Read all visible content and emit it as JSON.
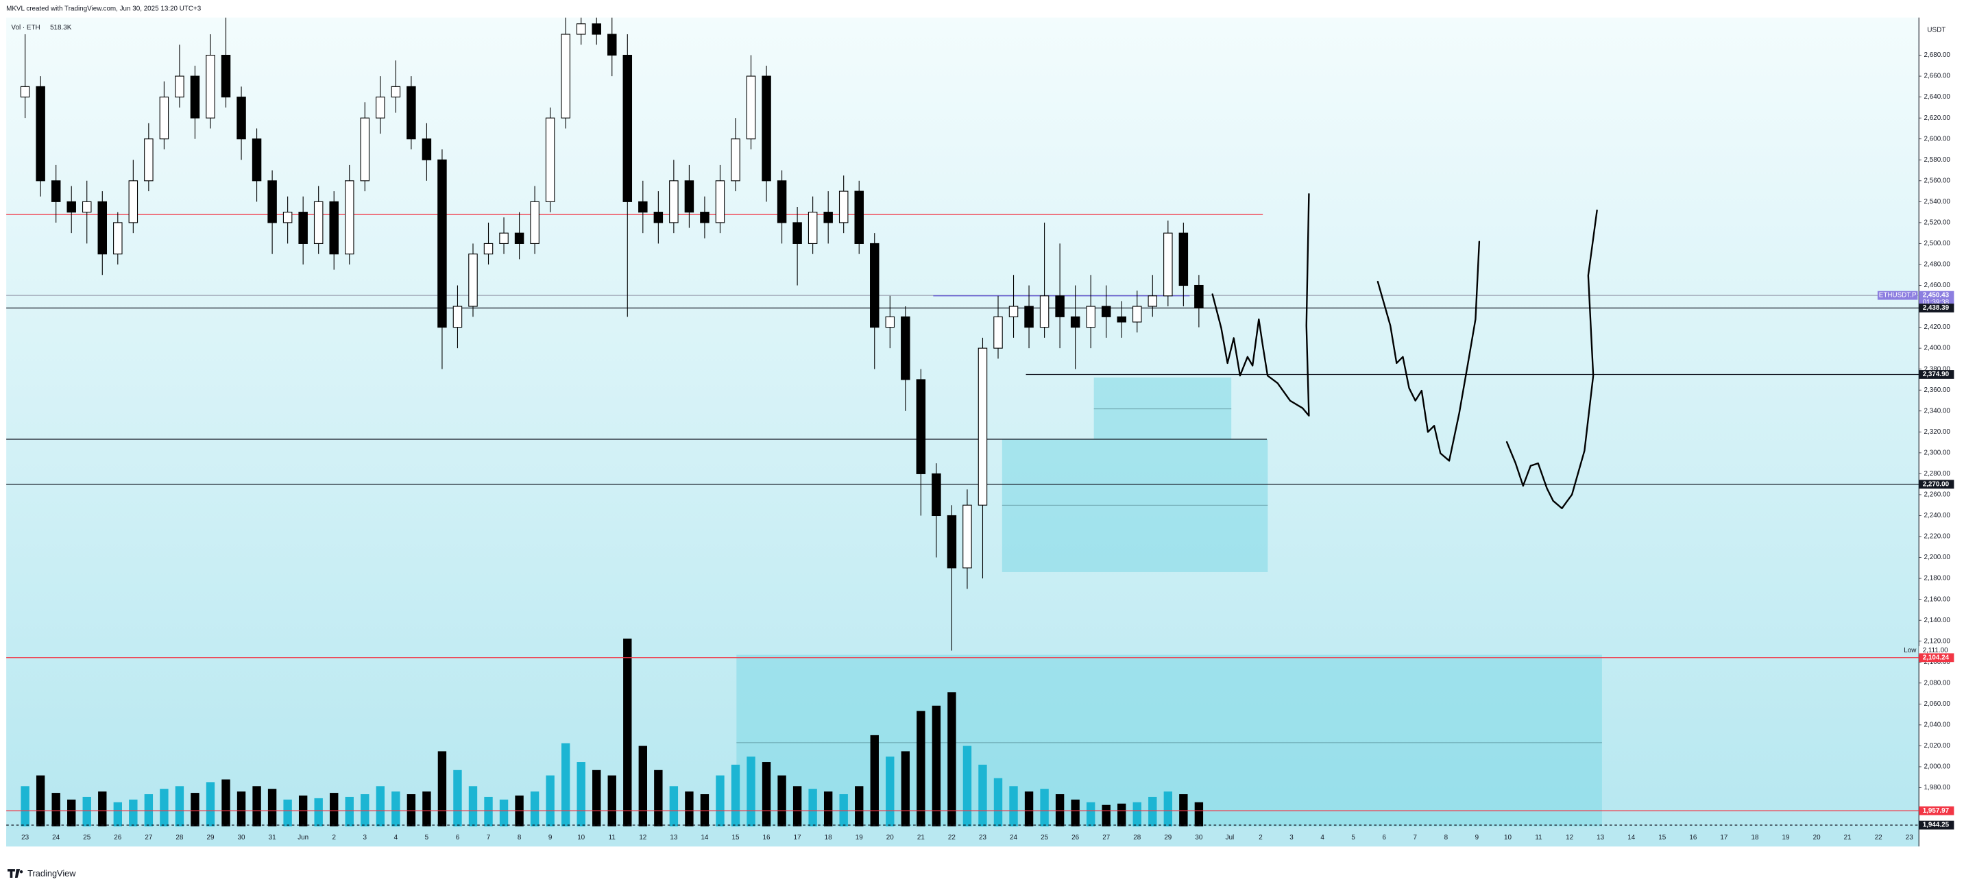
{
  "header": "MKVL created with TradingView.com, Jun 30, 2025 13:20 UTC+3",
  "footer": "TradingView",
  "chart_data": {
    "type": "candlestick",
    "currency": "USDT",
    "volume_label": "Vol · ETH",
    "volume_value": "518.3K",
    "up_color": "#ffffff",
    "down_color": "#000000",
    "volume_up_color": "#1cb5d3",
    "volume_down_color": "#000000",
    "x": [
      0,
      0.5,
      1,
      1.5,
      2,
      2.5,
      3,
      3.5,
      4,
      4.5,
      5,
      5.5,
      6,
      6.5,
      7,
      7.5,
      8,
      8.5,
      9,
      9.5,
      10,
      10.5,
      11,
      11.5,
      12,
      12.5,
      13,
      13.5,
      14,
      14.5,
      15,
      15.5,
      16,
      16.5,
      17,
      17.5,
      18,
      18.5,
      19,
      19.5,
      20,
      20.5,
      21,
      21.5,
      22,
      22.5,
      23,
      23.5,
      24,
      24.5,
      25,
      25.5,
      26,
      26.5,
      27,
      27.5,
      28,
      28.5,
      29,
      29.5,
      30,
      30.5,
      31,
      31.5,
      32,
      32.5,
      33,
      33.5,
      34,
      34.5,
      35,
      35.5,
      36,
      36.5,
      37,
      37.5,
      38
    ],
    "open": [
      2640,
      2650,
      2560,
      2540,
      2530,
      2540,
      2490,
      2520,
      2560,
      2600,
      2640,
      2660,
      2620,
      2680,
      2640,
      2600,
      2560,
      2520,
      2530,
      2500,
      2540,
      2490,
      2560,
      2620,
      2640,
      2650,
      2600,
      2580,
      2420,
      2440,
      2490,
      2500,
      2510,
      2500,
      2540,
      2620,
      2700,
      2710,
      2700,
      2680,
      2540,
      2530,
      2520,
      2560,
      2530,
      2520,
      2560,
      2600,
      2660,
      2560,
      2520,
      2500,
      2530,
      2520,
      2550,
      2500,
      2420,
      2430,
      2370,
      2280,
      2240,
      2190,
      2250,
      2400,
      2430,
      2440,
      2420,
      2450,
      2430,
      2420,
      2440,
      2430,
      2425,
      2440,
      2450,
      2510,
      2460
    ],
    "high": [
      2700,
      2660,
      2575,
      2555,
      2560,
      2550,
      2530,
      2580,
      2615,
      2655,
      2690,
      2670,
      2700,
      2716,
      2650,
      2610,
      2570,
      2545,
      2545,
      2555,
      2550,
      2575,
      2635,
      2660,
      2675,
      2660,
      2615,
      2590,
      2460,
      2500,
      2520,
      2525,
      2530,
      2555,
      2630,
      2716,
      2716,
      2716,
      2716,
      2700,
      2560,
      2550,
      2580,
      2575,
      2545,
      2575,
      2620,
      2680,
      2670,
      2570,
      2535,
      2545,
      2550,
      2565,
      2560,
      2510,
      2450,
      2440,
      2380,
      2290,
      2250,
      2265,
      2410,
      2450,
      2470,
      2460,
      2520,
      2500,
      2460,
      2470,
      2460,
      2445,
      2455,
      2470,
      2522,
      2520,
      2470
    ],
    "low": [
      2620,
      2545,
      2520,
      2510,
      2500,
      2470,
      2480,
      2510,
      2550,
      2590,
      2630,
      2600,
      2610,
      2630,
      2580,
      2540,
      2490,
      2500,
      2480,
      2490,
      2475,
      2480,
      2550,
      2605,
      2625,
      2590,
      2560,
      2380,
      2400,
      2430,
      2480,
      2490,
      2485,
      2490,
      2530,
      2610,
      2690,
      2690,
      2660,
      2430,
      2510,
      2500,
      2510,
      2515,
      2505,
      2510,
      2550,
      2590,
      2540,
      2500,
      2460,
      2490,
      2500,
      2510,
      2490,
      2380,
      2400,
      2340,
      2240,
      2200,
      2111,
      2170,
      2180,
      2390,
      2410,
      2400,
      2410,
      2400,
      2380,
      2400,
      2410,
      2410,
      2415,
      2430,
      2440,
      2440,
      2420
    ],
    "close": [
      2650,
      2560,
      2540,
      2530,
      2540,
      2490,
      2520,
      2560,
      2600,
      2640,
      2660,
      2620,
      2680,
      2640,
      2600,
      2560,
      2520,
      2530,
      2500,
      2540,
      2490,
      2560,
      2620,
      2640,
      2650,
      2600,
      2580,
      2420,
      2440,
      2490,
      2500,
      2510,
      2500,
      2540,
      2620,
      2700,
      2710,
      2700,
      2680,
      2540,
      2530,
      2520,
      2560,
      2530,
      2520,
      2560,
      2600,
      2660,
      2560,
      2520,
      2500,
      2530,
      2520,
      2550,
      2500,
      2420,
      2430,
      2370,
      2280,
      2240,
      2190,
      2250,
      2400,
      2430,
      2440,
      2420,
      2450,
      2430,
      2420,
      2440,
      2430,
      2425,
      2440,
      2450,
      2510,
      2460,
      2438.39
    ],
    "volume": [
      300,
      380,
      250,
      200,
      220,
      260,
      180,
      200,
      240,
      280,
      300,
      250,
      330,
      350,
      260,
      300,
      280,
      200,
      230,
      210,
      250,
      220,
      240,
      300,
      260,
      240,
      260,
      560,
      420,
      300,
      220,
      200,
      230,
      260,
      380,
      620,
      480,
      420,
      380,
      1400,
      600,
      420,
      300,
      260,
      240,
      380,
      460,
      520,
      480,
      380,
      300,
      280,
      260,
      240,
      300,
      680,
      520,
      560,
      860,
      900,
      1000,
      600,
      460,
      360,
      300,
      260,
      280,
      240,
      200,
      180,
      160,
      170,
      180,
      220,
      260,
      240,
      180
    ],
    "ylim": [
      1943,
      2716
    ],
    "yticks": [
      {
        "value": 1980,
        "label": "1,980.00"
      },
      {
        "value": 2000,
        "label": "2,000.00"
      },
      {
        "value": 2020,
        "label": "2,020.00"
      },
      {
        "value": 2040,
        "label": "2,040.00"
      },
      {
        "value": 2060,
        "label": "2,060.00"
      },
      {
        "value": 2080,
        "label": "2,080.00"
      },
      {
        "value": 2100,
        "label": "2,100.00"
      },
      {
        "value": 2120,
        "label": "2,120.00"
      },
      {
        "value": 2140,
        "label": "2,140.00"
      },
      {
        "value": 2160,
        "label": "2,160.00"
      },
      {
        "value": 2180,
        "label": "2,180.00"
      },
      {
        "value": 2200,
        "label": "2,200.00"
      },
      {
        "value": 2220,
        "label": "2,220.00"
      },
      {
        "value": 2240,
        "label": "2,240.00"
      },
      {
        "value": 2260,
        "label": "2,260.00"
      },
      {
        "value": 2280,
        "label": "2,280.00"
      },
      {
        "value": 2300,
        "label": "2,300.00"
      },
      {
        "value": 2320,
        "label": "2,320.00"
      },
      {
        "value": 2340,
        "label": "2,340.00"
      },
      {
        "value": 2360,
        "label": "2,360.00"
      },
      {
        "value": 2380,
        "label": "2,380.00"
      },
      {
        "value": 2400,
        "label": "2,400.00"
      },
      {
        "value": 2420,
        "label": "2,420.00"
      },
      {
        "value": 2440,
        "label": "2,440.00"
      },
      {
        "value": 2460,
        "label": "2,460.00"
      },
      {
        "value": 2480,
        "label": "2,480.00"
      },
      {
        "value": 2500,
        "label": "2,500.00"
      },
      {
        "value": 2520,
        "label": "2,520.00"
      },
      {
        "value": 2540,
        "label": "2,540.00"
      },
      {
        "value": 2560,
        "label": "2,560.00"
      },
      {
        "value": 2580,
        "label": "2,580.00"
      },
      {
        "value": 2600,
        "label": "2,600.00"
      },
      {
        "value": 2620,
        "label": "2,620.00"
      },
      {
        "value": 2640,
        "label": "2,640.00"
      },
      {
        "value": 2660,
        "label": "2,660.00"
      },
      {
        "value": 2680,
        "label": "2,680.00"
      }
    ],
    "xlim": [
      -0.61,
      61.31
    ],
    "xticks": [
      {
        "value": 0,
        "label": "23"
      },
      {
        "value": 1,
        "label": "24"
      },
      {
        "value": 2,
        "label": "25"
      },
      {
        "value": 3,
        "label": "26"
      },
      {
        "value": 4,
        "label": "27"
      },
      {
        "value": 5,
        "label": "28"
      },
      {
        "value": 6,
        "label": "29"
      },
      {
        "value": 7,
        "label": "30"
      },
      {
        "value": 8,
        "label": "31"
      },
      {
        "value": 9,
        "label": "Jun"
      },
      {
        "value": 10,
        "label": "2"
      },
      {
        "value": 11,
        "label": "3"
      },
      {
        "value": 12,
        "label": "4"
      },
      {
        "value": 13,
        "label": "5"
      },
      {
        "value": 14,
        "label": "6"
      },
      {
        "value": 15,
        "label": "7"
      },
      {
        "value": 16,
        "label": "8"
      },
      {
        "value": 17,
        "label": "9"
      },
      {
        "value": 18,
        "label": "10"
      },
      {
        "value": 19,
        "label": "11"
      },
      {
        "value": 20,
        "label": "12"
      },
      {
        "value": 21,
        "label": "13"
      },
      {
        "value": 22,
        "label": "14"
      },
      {
        "value": 23,
        "label": "15"
      },
      {
        "value": 24,
        "label": "16"
      },
      {
        "value": 25,
        "label": "17"
      },
      {
        "value": 26,
        "label": "18"
      },
      {
        "value": 27,
        "label": "19"
      },
      {
        "value": 28,
        "label": "20"
      },
      {
        "value": 29,
        "label": "21"
      },
      {
        "value": 30,
        "label": "22"
      },
      {
        "value": 31,
        "label": "23"
      },
      {
        "value": 32,
        "label": "24"
      },
      {
        "value": 33,
        "label": "25"
      },
      {
        "value": 34,
        "label": "26"
      },
      {
        "value": 35,
        "label": "27"
      },
      {
        "value": 36,
        "label": "28"
      },
      {
        "value": 37,
        "label": "29"
      },
      {
        "value": 38,
        "label": "30"
      },
      {
        "value": 39,
        "label": "Jul"
      },
      {
        "value": 40,
        "label": "2"
      },
      {
        "value": 41,
        "label": "3"
      },
      {
        "value": 42,
        "label": "4"
      },
      {
        "value": 43,
        "label": "5"
      },
      {
        "value": 44,
        "label": "6"
      },
      {
        "value": 45,
        "label": "7"
      },
      {
        "value": 46,
        "label": "8"
      },
      {
        "value": 47,
        "label": "9"
      },
      {
        "value": 48,
        "label": "10"
      },
      {
        "value": 49,
        "label": "11"
      },
      {
        "value": 50,
        "label": "12"
      },
      {
        "value": 51,
        "label": "13"
      },
      {
        "value": 52,
        "label": "14"
      },
      {
        "value": 53,
        "label": "15"
      },
      {
        "value": 54,
        "label": "16"
      },
      {
        "value": 55,
        "label": "17"
      },
      {
        "value": 56,
        "label": "18"
      },
      {
        "value": 57,
        "label": "19"
      },
      {
        "value": 58,
        "label": "20"
      },
      {
        "value": 59,
        "label": "21"
      },
      {
        "value": 60,
        "label": "22"
      },
      {
        "value": 61,
        "label": "23"
      }
    ],
    "zones": [
      {
        "x": [
          23.03,
          51.05
        ],
        "y": [
          1943,
          2107
        ],
        "mid": 2023
      },
      {
        "x": [
          31.63,
          40.23
        ],
        "y": [
          2186,
          2313
        ],
        "mid": 2250
      },
      {
        "x": [
          34.6,
          39.05
        ],
        "y": [
          2313,
          2372
        ],
        "mid": 2342
      }
    ],
    "levels": [
      {
        "value": 2528,
        "color": "#f23645",
        "to": 40.07
      },
      {
        "value": 2313,
        "color": "#131722",
        "to": 40.2
      },
      {
        "value": 2450.43,
        "color": "#9aa0b0",
        "name": "ETHUSDT.P",
        "label": "2,450.43",
        "timer": "01:39:38",
        "badge": "#8c7ee0"
      },
      {
        "value": 2450,
        "color": "#5b4fd6",
        "from": 29.4,
        "to": 37.7
      },
      {
        "value": 2438.39,
        "color": "#131722",
        "label": "2,438.39",
        "badge": "#131722"
      },
      {
        "value": 2374.9,
        "color": "#131722",
        "from": 32.4,
        "label": "2,374.90",
        "badge": "#131722"
      },
      {
        "value": 2270,
        "color": "#131722",
        "label": "2,270.00",
        "badge": "#131722"
      },
      {
        "value": 2111,
        "name": "Low",
        "label": "2,111.00"
      },
      {
        "value": 2104.24,
        "color": "#f23645",
        "label": "2,104.24",
        "badge": "#f23645"
      },
      {
        "value": 1957.97,
        "color": "#f23645",
        "label": "1,957.97",
        "badge": "#f23645"
      },
      {
        "value": 1944.25,
        "color": "#131722",
        "dashed": true,
        "label": "1,944.25",
        "badge": "#131722"
      }
    ]
  }
}
